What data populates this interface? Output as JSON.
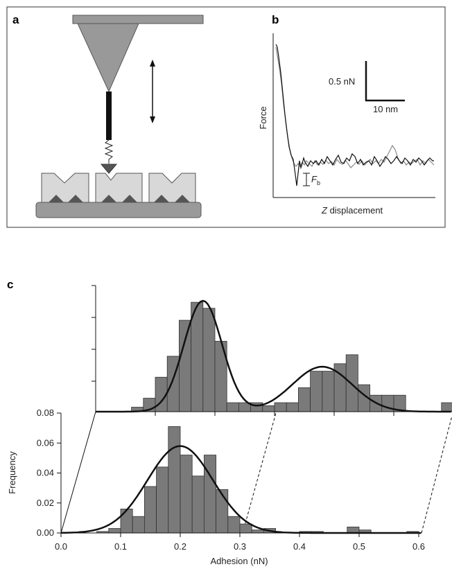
{
  "panels": {
    "a": {
      "label": "a"
    },
    "b": {
      "label": "b",
      "scale_force": "0.5 nN",
      "scale_distance": "10 nm",
      "y_label": "Force",
      "x_label_italic": "Z",
      "x_label": " displacement",
      "fb_main": "F",
      "fb_sub": "b"
    },
    "c": {
      "label": "c"
    }
  },
  "colors": {
    "bar_fill": "#7a7a7a",
    "cantilever": "#999999",
    "substrate": "#9a9a9a",
    "cell": "#d8d8d8",
    "trace_light": "#888888",
    "trace_dark": "#111111"
  },
  "chart_data": [
    {
      "type": "bar",
      "name": "front-histogram",
      "xlabel": "Adhesion (nN)",
      "ylabel": "Frequency",
      "xlim": [
        0,
        0.65
      ],
      "ylim": [
        0,
        0.08
      ],
      "x_ticks": [
        "0.0",
        "0.1",
        "0.2",
        "0.3",
        "0.4",
        "0.5",
        "0.6"
      ],
      "x_tick_values": [
        0,
        0.1,
        0.2,
        0.3,
        0.4,
        0.5,
        0.6
      ],
      "y_ticks": [
        "0.00",
        "0.02",
        "0.04",
        "0.06",
        "0.08"
      ],
      "y_tick_values": [
        0,
        0.02,
        0.04,
        0.06,
        0.08
      ],
      "bin_width": 0.02,
      "bin_starts": [
        0.06,
        0.08,
        0.1,
        0.12,
        0.14,
        0.16,
        0.18,
        0.2,
        0.22,
        0.24,
        0.26,
        0.28,
        0.3,
        0.32,
        0.34,
        0.4,
        0.42,
        0.48,
        0.5,
        0.58
      ],
      "values": [
        0.001,
        0.003,
        0.016,
        0.011,
        0.031,
        0.044,
        0.071,
        0.052,
        0.038,
        0.052,
        0.029,
        0.011,
        0.006,
        0.002,
        0.003,
        0.001,
        0.001,
        0.004,
        0.002,
        0.001
      ],
      "fit_curve": {
        "type": "gaussian",
        "mean": 0.2,
        "sd": 0.055,
        "amplitude": 0.058
      }
    },
    {
      "type": "bar",
      "name": "back-histogram",
      "bin_width": 0.02,
      "bin_starts": [
        0.06,
        0.08,
        0.1,
        0.12,
        0.14,
        0.16,
        0.18,
        0.2,
        0.22,
        0.24,
        0.26,
        0.28,
        0.3,
        0.32,
        0.34,
        0.36,
        0.38,
        0.4,
        0.42,
        0.44,
        0.46,
        0.48,
        0.5,
        0.58
      ],
      "values": [
        0.003,
        0.009,
        0.023,
        0.037,
        0.061,
        0.073,
        0.069,
        0.047,
        0.006,
        0.006,
        0.006,
        0.004,
        0.006,
        0.006,
        0.016,
        0.027,
        0.027,
        0.032,
        0.038,
        0.018,
        0.011,
        0.011,
        0.011,
        0.006
      ],
      "fit_curves": [
        {
          "type": "gaussian",
          "mean": 0.18,
          "sd": 0.032,
          "amplitude": 0.074
        },
        {
          "type": "gaussian",
          "mean": 0.38,
          "sd": 0.05,
          "amplitude": 0.03
        }
      ]
    }
  ]
}
